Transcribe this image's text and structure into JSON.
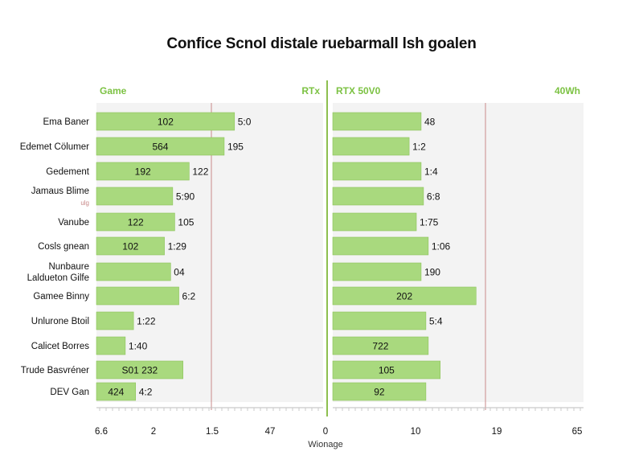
{
  "title": "Confice Scnol distale ruebarmall lsh goalen",
  "colors": {
    "bar": "#a9d97e",
    "bar_stroke": "#8cc45a",
    "header": "#7cc243",
    "panel": "#f3f3f3",
    "ref_line": "#c98a8a",
    "divider": "#8dbf4f"
  },
  "chart_data": [
    {
      "type": "bar",
      "orientation": "horizontal",
      "header_left": "Game",
      "header_right": "RTx",
      "categories": [
        [
          "Ema Baner"
        ],
        [
          "Edemet Cölumer"
        ],
        [
          "Gedement"
        ],
        [
          "Jamaus Blime",
          "ulg"
        ],
        [
          "Vanube"
        ],
        [
          "Cosls gnean"
        ],
        [
          "Nunbaure",
          "Laldueton Gilfe"
        ],
        [
          "Gamee Binny"
        ],
        [
          "Unlurone Btoil"
        ],
        [
          "Calicet Borres"
        ],
        [
          "Trude Basvréner"
        ],
        [
          "DEV Gan"
        ]
      ],
      "values": [
        67,
        62,
        45,
        37,
        38,
        33,
        36,
        40,
        18,
        14,
        42,
        19
      ],
      "labels_inside": [
        "102",
        "564",
        "192",
        "",
        "122",
        "102",
        "",
        "",
        "",
        "",
        "S01 232",
        "424"
      ],
      "labels_outside": [
        "5:0",
        "195",
        "122",
        "5:90",
        "105",
        "1:29",
        "04",
        "6:2",
        "1:22",
        "1:40",
        "",
        "4:2"
      ],
      "xlim": [
        0,
        110
      ],
      "ticks": [
        "6.6",
        "2",
        "1.5",
        "47",
        "0"
      ],
      "xlabel": "Wionage"
    },
    {
      "type": "bar",
      "orientation": "horizontal",
      "header_left": "RTX 50V0",
      "header_right": "40Wh",
      "values": [
        37,
        32,
        37,
        38,
        35,
        40,
        37,
        60,
        39,
        40,
        45,
        39
      ],
      "labels_inside": [
        "",
        "",
        "",
        "",
        "",
        "",
        "",
        "202",
        "",
        "722",
        "105",
        "92"
      ],
      "labels_outside": [
        "48",
        "1:2",
        "1:4",
        "6:8",
        "1:75",
        "1:06",
        "190",
        "",
        "5:4",
        "",
        "",
        ""
      ],
      "xlim": [
        0,
        105
      ],
      "ticks": [
        "10",
        "19",
        "65"
      ]
    }
  ]
}
